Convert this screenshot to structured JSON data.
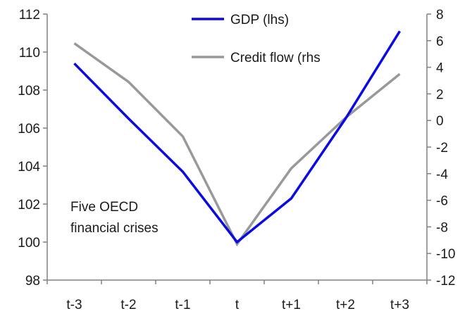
{
  "chart_data": {
    "type": "line",
    "categories": [
      "t-3",
      "t-2",
      "t-1",
      "t",
      "t+1",
      "t+2",
      "t+3"
    ],
    "series": [
      {
        "name": "GDP (lhs)",
        "axis": "left",
        "color": "#0a0ae6",
        "values": [
          109.4,
          106.5,
          103.7,
          100.0,
          102.3,
          106.5,
          111.1
        ]
      },
      {
        "name": "Credit flow (rhs",
        "axis": "right",
        "color": "#999999",
        "values": [
          5.8,
          2.9,
          -1.2,
          -9.3,
          -3.6,
          0.2,
          3.5
        ]
      }
    ],
    "y_left": {
      "min": 98,
      "max": 112,
      "ticks": [
        "98",
        "100",
        "102",
        "104",
        "106",
        "108",
        "110",
        "112"
      ]
    },
    "y_right": {
      "min": -12,
      "max": 8,
      "ticks": [
        "-12",
        "-10",
        "-8",
        "-6",
        "-4",
        "-2",
        "0",
        "2",
        "4",
        "6",
        "8"
      ]
    },
    "annotation": [
      "Five OECD",
      "financial crises"
    ],
    "legend_position": "top-center",
    "grid": false
  }
}
